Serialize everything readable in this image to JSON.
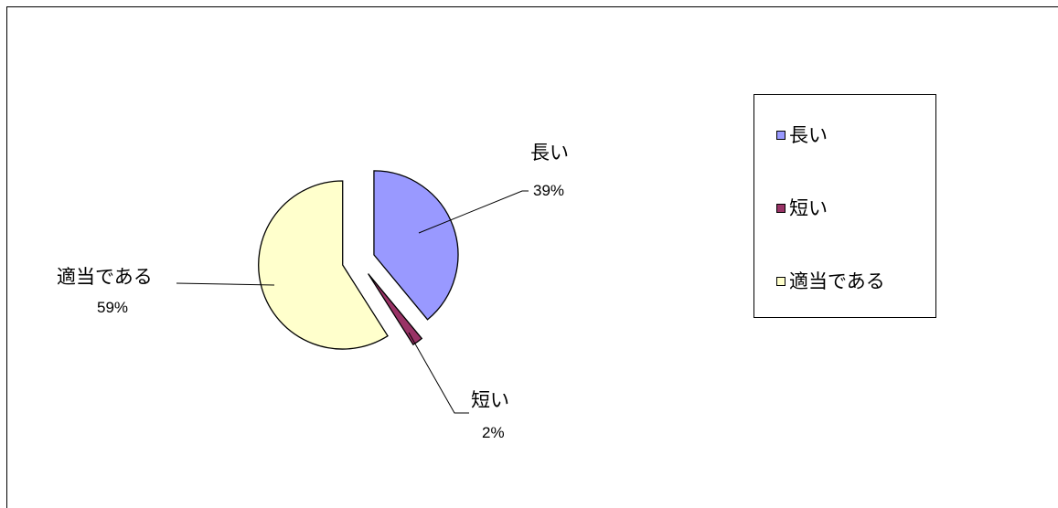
{
  "chart_data": {
    "type": "pie",
    "exploded": true,
    "slices": [
      {
        "name": "長い",
        "value": 39,
        "label": "39%",
        "color": "#9999ff"
      },
      {
        "name": "短い",
        "value": 2,
        "label": "2%",
        "color": "#993366"
      },
      {
        "name": "適当である",
        "value": 59,
        "label": "59%",
        "color": "#ffffcc"
      }
    ],
    "legend": {
      "position": "right"
    }
  }
}
